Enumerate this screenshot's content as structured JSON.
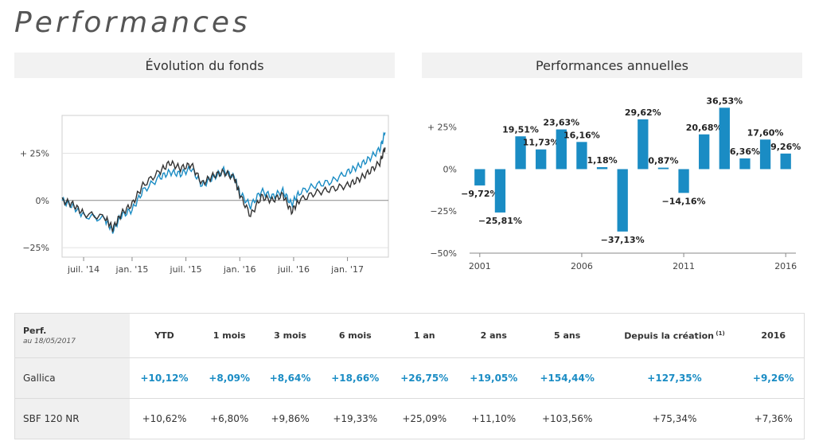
{
  "page_title": "Performances",
  "evolution": {
    "title": "Évolution du fonds",
    "y_ticks": [
      "+ 25%",
      "0%",
      "−25%"
    ],
    "x_ticks": [
      "juil. '14",
      "jan. '15",
      "juil. '15",
      "jan. '16",
      "juil. '16",
      "jan. '17"
    ],
    "colors": {
      "fund": "#1a8cc4",
      "index": "#333333"
    }
  },
  "annual": {
    "title": "Performances annuelles",
    "y_ticks": [
      "+ 25%",
      "0%",
      "−25%",
      "−50%"
    ],
    "x_ticks": [
      "2001",
      "2006",
      "2011",
      "2016"
    ],
    "bar_color": "#1a8cc4"
  },
  "chart_data": [
    {
      "type": "line",
      "title": "Évolution du fonds",
      "x_range": [
        "2014-05",
        "2017-05"
      ],
      "ylim": [
        -30,
        45
      ],
      "series": [
        {
          "values_approx": [
            [
              2014.35,
              0
            ],
            [
              2014.45,
              -3
            ],
            [
              2014.55,
              -8
            ],
            [
              2014.75,
              -10
            ],
            [
              2014.82,
              -16
            ],
            [
              2014.9,
              -8
            ],
            [
              2015.0,
              -5
            ],
            [
              2015.1,
              5
            ],
            [
              2015.25,
              12
            ],
            [
              2015.35,
              15
            ],
            [
              2015.45,
              14
            ],
            [
              2015.55,
              17
            ],
            [
              2015.65,
              8
            ],
            [
              2015.75,
              12
            ],
            [
              2015.85,
              16
            ],
            [
              2015.95,
              12
            ],
            [
              2016.0,
              4
            ],
            [
              2016.1,
              -3
            ],
            [
              2016.2,
              5
            ],
            [
              2016.3,
              2
            ],
            [
              2016.4,
              5
            ],
            [
              2016.48,
              -2
            ],
            [
              2016.55,
              4
            ],
            [
              2016.7,
              8
            ],
            [
              2016.85,
              10
            ],
            [
              2017.0,
              15
            ],
            [
              2017.1,
              18
            ],
            [
              2017.2,
              22
            ],
            [
              2017.3,
              27
            ],
            [
              2017.35,
              36
            ]
          ]
        },
        {
          "values_approx": [
            [
              2014.35,
              0
            ],
            [
              2014.45,
              -2
            ],
            [
              2014.55,
              -7
            ],
            [
              2014.75,
              -9
            ],
            [
              2014.82,
              -15
            ],
            [
              2014.9,
              -7
            ],
            [
              2015.0,
              -2
            ],
            [
              2015.1,
              8
            ],
            [
              2015.25,
              15
            ],
            [
              2015.35,
              20
            ],
            [
              2015.45,
              17
            ],
            [
              2015.55,
              19
            ],
            [
              2015.65,
              9
            ],
            [
              2015.75,
              13
            ],
            [
              2015.85,
              15
            ],
            [
              2015.95,
              12
            ],
            [
              2016.0,
              3
            ],
            [
              2016.1,
              -8
            ],
            [
              2016.2,
              2
            ],
            [
              2016.3,
              0
            ],
            [
              2016.4,
              3
            ],
            [
              2016.48,
              -6
            ],
            [
              2016.55,
              0
            ],
            [
              2016.7,
              4
            ],
            [
              2016.85,
              6
            ],
            [
              2017.0,
              8
            ],
            [
              2017.1,
              11
            ],
            [
              2017.2,
              15
            ],
            [
              2017.3,
              20
            ],
            [
              2017.35,
              28
            ]
          ]
        }
      ]
    },
    {
      "type": "bar",
      "title": "Performances annuelles",
      "categories": [
        "2001",
        "2002",
        "2003",
        "2004",
        "2005",
        "2006",
        "2007",
        "2008",
        "2009",
        "2010",
        "2011",
        "2012",
        "2013",
        "2014",
        "2015",
        "2016"
      ],
      "values": [
        -9.72,
        -25.81,
        19.51,
        11.73,
        23.63,
        16.16,
        1.18,
        -37.13,
        29.62,
        0.87,
        -14.16,
        20.68,
        36.53,
        6.36,
        17.6,
        9.26
      ],
      "labels": [
        "−9,72%",
        "−25,81%",
        "19,51%",
        "11,73%",
        "23,63%",
        "16,16%",
        "1,18%",
        "−37,13%",
        "29,62%",
        "0,87%",
        "−14,16%",
        "20,68%",
        "36,53%",
        "6,36%",
        "17,60%",
        "9,26%"
      ],
      "ylim": [
        -50,
        40
      ]
    }
  ],
  "table": {
    "header_first": "Perf.",
    "header_first_sub": "au 18/05/2017",
    "columns": [
      "YTD",
      "1 mois",
      "3 mois",
      "6 mois",
      "1 an",
      "2 ans",
      "5 ans",
      "Depuis la création",
      "2016"
    ],
    "creation_sup": "(1)",
    "rows": [
      {
        "name": "Gallica",
        "values": [
          "+10,12%",
          "+8,09%",
          "+8,64%",
          "+18,66%",
          "+26,75%",
          "+19,05%",
          "+154,44%",
          "+127,35%",
          "+9,26%"
        ]
      },
      {
        "name": "SBF 120 NR",
        "values": [
          "+10,62%",
          "+6,80%",
          "+9,86%",
          "+19,33%",
          "+25,09%",
          "+11,10%",
          "+103,56%",
          "+75,34%",
          "+7,36%"
        ]
      }
    ]
  }
}
